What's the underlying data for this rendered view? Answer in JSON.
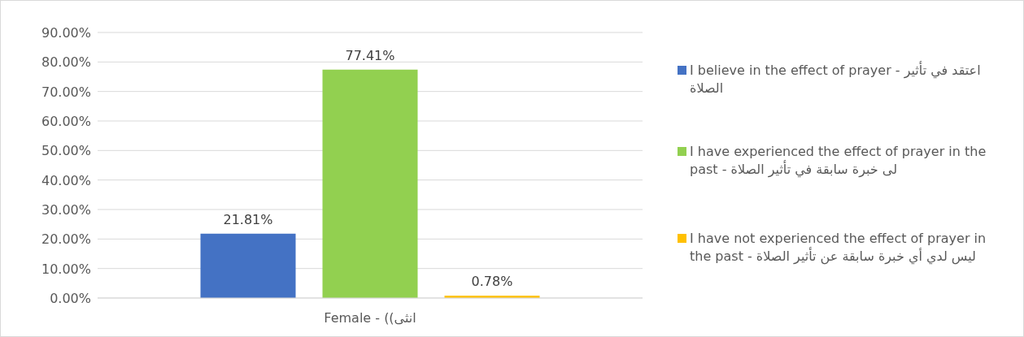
{
  "chart_data": {
    "type": "bar",
    "categories": [
      "Female - ((انثى"
    ],
    "series": [
      {
        "name": "I believe in the effect of prayer - اعتقد في تأثير الصلاة",
        "color": "#4472c4",
        "values": [
          21.81
        ],
        "value_labels": [
          "21.81%"
        ]
      },
      {
        "name": "I have experienced the effect of prayer in the past - لى خبرة سابقة في تأثير الصلاة",
        "color": "#92d050",
        "values": [
          77.41
        ],
        "value_labels": [
          "77.41%"
        ]
      },
      {
        "name": "I have not experienced the effect of prayer in the past - ليس لدي أي خبرة سابقة عن تأثير الصلاة",
        "color": "#ffc000",
        "values": [
          0.78
        ],
        "value_labels": [
          "0.78%"
        ]
      }
    ],
    "ylim": [
      0,
      90
    ],
    "yticks": [
      {
        "value": 0,
        "label": "0.00%"
      },
      {
        "value": 10,
        "label": "10.00%"
      },
      {
        "value": 20,
        "label": "20.00%"
      },
      {
        "value": 30,
        "label": "30.00%"
      },
      {
        "value": 40,
        "label": "40.00%"
      },
      {
        "value": 50,
        "label": "50.00%"
      },
      {
        "value": 60,
        "label": "60.00%"
      },
      {
        "value": 70,
        "label": "70.00%"
      },
      {
        "value": 80,
        "label": "80.00%"
      },
      {
        "value": 90,
        "label": "90.00%"
      }
    ],
    "grid": "y",
    "legend": "right"
  }
}
